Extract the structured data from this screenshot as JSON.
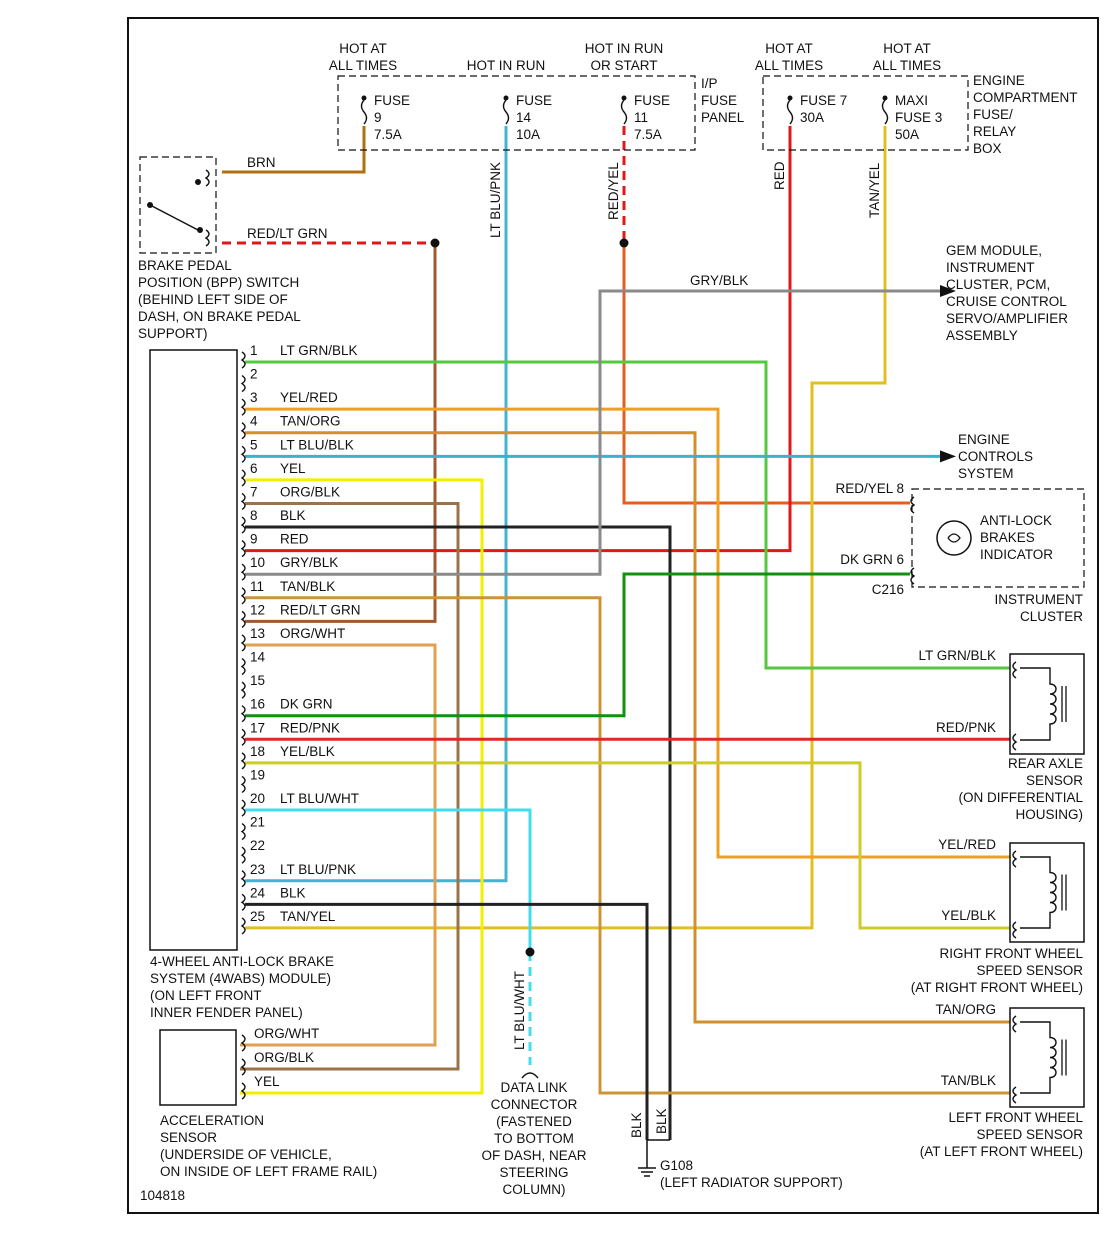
{
  "diagram_id": "104818",
  "fuse_panel": {
    "ip_label": [
      "I/P",
      "FUSE",
      "PANEL"
    ],
    "engine_label": [
      "ENGINE",
      "COMPARTMENT",
      "FUSE/",
      "RELAY",
      "BOX"
    ],
    "fuses": [
      {
        "feed": [
          "HOT AT",
          "ALL TIMES"
        ],
        "lines": [
          "FUSE",
          "9",
          "7.5A"
        ]
      },
      {
        "feed": [
          "HOT IN RUN"
        ],
        "lines": [
          "FUSE",
          "14",
          "10A"
        ]
      },
      {
        "feed": [
          "HOT IN RUN",
          "OR START"
        ],
        "lines": [
          "FUSE",
          "11",
          "7.5A"
        ]
      },
      {
        "feed": [
          "HOT AT",
          "ALL TIMES"
        ],
        "lines": [
          "FUSE 7",
          "30A"
        ]
      },
      {
        "feed": [
          "HOT AT",
          "ALL TIMES"
        ],
        "lines": [
          "MAXI",
          "FUSE 3",
          "50A"
        ]
      }
    ]
  },
  "wire_labels": {
    "brn": "BRN",
    "red_lt_grn": "RED/LT GRN",
    "lt_blu_pnk": "LT BLU/PNK",
    "red_yel": "RED/YEL",
    "red": "RED",
    "tan_yel": "TAN/YEL",
    "gry_blk": "GRY/BLK",
    "lt_blu_wht": "LT BLU/WHT",
    "blk": "BLK"
  },
  "bpp_switch": [
    "BRAKE PEDAL",
    "POSITION (BPP) SWITCH",
    "(BEHIND LEFT SIDE OF",
    "DASH, ON BRAKE PEDAL",
    "SUPPORT)"
  ],
  "gem_module": [
    "GEM MODULE,",
    "INSTRUMENT",
    "CLUSTER, PCM,",
    "CRUISE CONTROL",
    "SERVO/AMPLIFIER",
    "ASSEMBLY"
  ],
  "engine_controls": [
    "ENGINE",
    "CONTROLS",
    "SYSTEM"
  ],
  "instrument_cluster": {
    "pin8": "RED/YEL  8",
    "pin6": "DK GRN  6",
    "connector": "C216",
    "indicator": [
      "ANTI-LOCK",
      "BRAKES",
      "INDICATOR"
    ],
    "name": [
      "INSTRUMENT",
      "CLUSTER"
    ]
  },
  "abs_module": {
    "name": [
      "4-WHEEL ANTI-LOCK BRAKE",
      "SYSTEM (4WABS) MODULE)",
      "(ON LEFT FRONT",
      "INNER FENDER PANEL)"
    ],
    "pins": [
      {
        "num": "1",
        "label": "LT GRN/BLK",
        "color": "#55c840"
      },
      {
        "num": "2",
        "label": "",
        "color": ""
      },
      {
        "num": "3",
        "label": "YEL/RED",
        "color": "#eea020"
      },
      {
        "num": "4",
        "label": "TAN/ORG",
        "color": "#d0902c"
      },
      {
        "num": "5",
        "label": "LT BLU/BLK",
        "color": "#38b4c8"
      },
      {
        "num": "6",
        "label": "YEL",
        "color": "#f2f000"
      },
      {
        "num": "7",
        "label": "ORG/BLK",
        "color": "#9a7448"
      },
      {
        "num": "8",
        "label": "BLK",
        "color": "#222222"
      },
      {
        "num": "9",
        "label": "RED",
        "color": "#e01818"
      },
      {
        "num": "10",
        "label": "GRY/BLK",
        "color": "#8a8a8a"
      },
      {
        "num": "11",
        "label": "TAN/BLK",
        "color": "#cc9438"
      },
      {
        "num": "12",
        "label": "RED/LT GRN",
        "color": "#a05830"
      },
      {
        "num": "13",
        "label": "ORG/WHT",
        "color": "#e0a050"
      },
      {
        "num": "14",
        "label": "",
        "color": ""
      },
      {
        "num": "15",
        "label": "",
        "color": ""
      },
      {
        "num": "16",
        "label": "DK GRN",
        "color": "#119011"
      },
      {
        "num": "17",
        "label": "RED/PNK",
        "color": "#e02828"
      },
      {
        "num": "18",
        "label": "YEL/BLK",
        "color": "#cccc28"
      },
      {
        "num": "19",
        "label": "",
        "color": ""
      },
      {
        "num": "20",
        "label": "LT BLU/WHT",
        "color": "#44dcec"
      },
      {
        "num": "21",
        "label": "",
        "color": ""
      },
      {
        "num": "22",
        "label": "",
        "color": ""
      },
      {
        "num": "23",
        "label": "LT BLU/PNK",
        "color": "#40b4d0"
      },
      {
        "num": "24",
        "label": "BLK",
        "color": "#222222"
      },
      {
        "num": "25",
        "label": "TAN/YEL",
        "color": "#e0c020"
      }
    ]
  },
  "rear_axle_sensor": {
    "top": "LT GRN/BLK",
    "bottom": "RED/PNK",
    "name": [
      "REAR AXLE",
      "SENSOR",
      "(ON DIFFERENTIAL",
      "HOUSING)"
    ]
  },
  "rf_sensor": {
    "top": "YEL/RED",
    "bottom": "YEL/BLK",
    "name": [
      "RIGHT FRONT WHEEL",
      "SPEED SENSOR",
      "(AT RIGHT FRONT WHEEL)"
    ]
  },
  "lf_sensor": {
    "top": "TAN/ORG",
    "bottom": "TAN/BLK",
    "name": [
      "LEFT FRONT WHEEL",
      "SPEED SENSOR",
      "(AT LEFT FRONT WHEEL)"
    ]
  },
  "accel_sensor": {
    "pins": [
      "ORG/WHT",
      "ORG/BLK",
      "YEL"
    ],
    "name": [
      "ACCELERATION",
      "SENSOR",
      "(UNDERSIDE OF VEHICLE,",
      "ON INSIDE OF LEFT FRAME RAIL)"
    ]
  },
  "dlc": [
    "DATA LINK",
    "CONNECTOR",
    "(FASTENED",
    "TO BOTTOM",
    "OF DASH, NEAR",
    "STEERING",
    "COLUMN)"
  ],
  "ground": {
    "name": "G108",
    "location": "(LEFT RADIATOR SUPPORT)"
  }
}
